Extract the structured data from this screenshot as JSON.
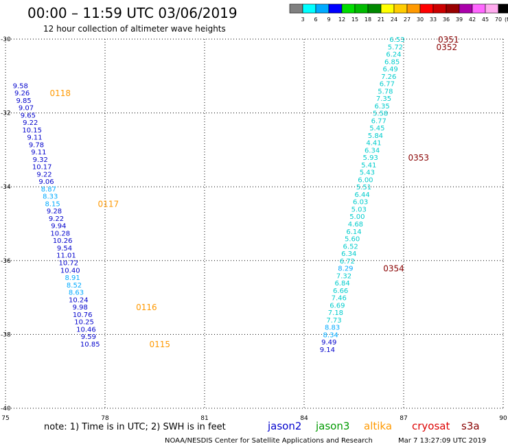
{
  "title": "00:00 – 11:59 UTC 03/06/2019",
  "subtitle": "12 hour collection of altimeter wave heights",
  "note": "note: 1) Time is in UTC; 2) SWH is in feet",
  "credit": "NOAA/NESDIS Center for Satellite Applications and Research",
  "timestamp": "Mar  7 13:27:09 UTC 2019",
  "satellites": [
    {
      "name": "jason2",
      "color": "#0000cc"
    },
    {
      "name": "jason3",
      "color": "#009900"
    },
    {
      "name": "altika",
      "color": "#ff9900"
    },
    {
      "name": "cryosat",
      "color": "#dd0000"
    },
    {
      "name": "s3a",
      "color": "#880000"
    }
  ],
  "colorbar": {
    "labels": [
      "3",
      "6",
      "9",
      "12",
      "15",
      "18",
      "21",
      "24",
      "27",
      "30",
      "33",
      "36",
      "39",
      "42",
      "45",
      "70"
    ],
    "unit": "(ft)",
    "colors": [
      "#808080",
      "#00ffff",
      "#00aaff",
      "#0000ff",
      "#00dd00",
      "#00bb00",
      "#008800",
      "#ffff00",
      "#ffcc00",
      "#ff9900",
      "#ff0000",
      "#cc0000",
      "#990000",
      "#aa00aa",
      "#ff66ff",
      "#ffaaee",
      "#000000"
    ]
  },
  "chart_data": {
    "type": "scatter",
    "x_ticks": [
      "75",
      "78",
      "81",
      "84",
      "87",
      "90"
    ],
    "y_ticks": [
      "-30",
      "-32",
      "-34",
      "-36",
      "-38",
      "-40"
    ],
    "xlim": [
      75,
      90
    ],
    "ylim": [
      -40,
      -30
    ],
    "grid": true,
    "tracks": [
      {
        "points": [
          {
            "v": "9.58",
            "c": "#0000cc",
            "x": 75.45,
            "y": -31.25
          },
          {
            "v": "9.26",
            "c": "#0000cc",
            "x": 75.5,
            "y": -31.45
          },
          {
            "v": "9.85",
            "c": "#0000cc",
            "x": 75.55,
            "y": -31.65
          },
          {
            "v": "9.07",
            "c": "#0000cc",
            "x": 75.62,
            "y": -31.85
          },
          {
            "v": "9.65",
            "c": "#0000cc",
            "x": 75.68,
            "y": -32.05
          },
          {
            "v": "9.22",
            "c": "#0000cc",
            "x": 75.75,
            "y": -32.25
          },
          {
            "v": "10.15",
            "c": "#0000cc",
            "x": 75.8,
            "y": -32.45
          },
          {
            "v": "9.11",
            "c": "#0000cc",
            "x": 75.88,
            "y": -32.65
          },
          {
            "v": "9.78",
            "c": "#0000cc",
            "x": 75.93,
            "y": -32.85
          },
          {
            "v": "9.11",
            "c": "#0000cc",
            "x": 76.0,
            "y": -33.05
          },
          {
            "v": "9.32",
            "c": "#0000cc",
            "x": 76.05,
            "y": -33.25
          },
          {
            "v": "10.17",
            "c": "#0000cc",
            "x": 76.1,
            "y": -33.45
          },
          {
            "v": "9.22",
            "c": "#0000cc",
            "x": 76.17,
            "y": -33.65
          },
          {
            "v": "9.06",
            "c": "#0000cc",
            "x": 76.23,
            "y": -33.85
          },
          {
            "v": "8.87",
            "c": "#00aaff",
            "x": 76.3,
            "y": -34.05
          },
          {
            "v": "8.33",
            "c": "#00aaff",
            "x": 76.35,
            "y": -34.25
          },
          {
            "v": "8.15",
            "c": "#00aaff",
            "x": 76.42,
            "y": -34.45
          },
          {
            "v": "9.28",
            "c": "#0000cc",
            "x": 76.47,
            "y": -34.65
          },
          {
            "v": "9.22",
            "c": "#0000cc",
            "x": 76.53,
            "y": -34.85
          },
          {
            "v": "9.94",
            "c": "#0000cc",
            "x": 76.6,
            "y": -35.05
          },
          {
            "v": "10.28",
            "c": "#0000cc",
            "x": 76.65,
            "y": -35.25
          },
          {
            "v": "10.26",
            "c": "#0000cc",
            "x": 76.72,
            "y": -35.45
          },
          {
            "v": "9.54",
            "c": "#0000cc",
            "x": 76.78,
            "y": -35.65
          },
          {
            "v": "11.01",
            "c": "#0000cc",
            "x": 76.83,
            "y": -35.85
          },
          {
            "v": "10.72",
            "c": "#0000cc",
            "x": 76.9,
            "y": -36.05
          },
          {
            "v": "10.40",
            "c": "#0000cc",
            "x": 76.95,
            "y": -36.25
          },
          {
            "v": "8.91",
            "c": "#00aaff",
            "x": 77.02,
            "y": -36.45
          },
          {
            "v": "8.52",
            "c": "#00aaff",
            "x": 77.07,
            "y": -36.65
          },
          {
            "v": "8.63",
            "c": "#00aaff",
            "x": 77.13,
            "y": -36.85
          },
          {
            "v": "10.24",
            "c": "#0000cc",
            "x": 77.2,
            "y": -37.05
          },
          {
            "v": "9.98",
            "c": "#0000cc",
            "x": 77.25,
            "y": -37.25
          },
          {
            "v": "10.76",
            "c": "#0000cc",
            "x": 77.32,
            "y": -37.45
          },
          {
            "v": "10.25",
            "c": "#0000cc",
            "x": 77.37,
            "y": -37.65
          },
          {
            "v": "10.46",
            "c": "#0000cc",
            "x": 77.43,
            "y": -37.85
          },
          {
            "v": "9.59",
            "c": "#0000cc",
            "x": 77.5,
            "y": -38.05
          },
          {
            "v": "10.85",
            "c": "#0000cc",
            "x": 77.55,
            "y": -38.25
          }
        ],
        "times": [
          {
            "v": "0118",
            "c": "#ff9900",
            "x": 76.65,
            "y": -31.45
          },
          {
            "v": "0117",
            "c": "#ff9900",
            "x": 78.1,
            "y": -34.45
          },
          {
            "v": "0116",
            "c": "#ff9900",
            "x": 79.25,
            "y": -37.25
          },
          {
            "v": "0115",
            "c": "#ff9900",
            "x": 79.65,
            "y": -38.25
          }
        ]
      },
      {
        "points": [
          {
            "v": "6.53",
            "c": "#00cccc",
            "x": 86.8,
            "y": -30.0
          },
          {
            "v": "5.72",
            "c": "#00cccc",
            "x": 86.75,
            "y": -30.2
          },
          {
            "v": "6.24",
            "c": "#00cccc",
            "x": 86.7,
            "y": -30.4
          },
          {
            "v": "6.85",
            "c": "#00cccc",
            "x": 86.65,
            "y": -30.6
          },
          {
            "v": "6.49",
            "c": "#00cccc",
            "x": 86.6,
            "y": -30.8
          },
          {
            "v": "7.26",
            "c": "#00cccc",
            "x": 86.55,
            "y": -31.0
          },
          {
            "v": "6.77",
            "c": "#00cccc",
            "x": 86.5,
            "y": -31.2
          },
          {
            "v": "5.78",
            "c": "#00cccc",
            "x": 86.45,
            "y": -31.4
          },
          {
            "v": "7.35",
            "c": "#00cccc",
            "x": 86.4,
            "y": -31.6
          },
          {
            "v": "6.35",
            "c": "#00cccc",
            "x": 86.35,
            "y": -31.8
          },
          {
            "v": "5.58",
            "c": "#00cccc",
            "x": 86.3,
            "y": -32.0
          },
          {
            "v": "6.77",
            "c": "#00cccc",
            "x": 86.25,
            "y": -32.2
          },
          {
            "v": "5.45",
            "c": "#00cccc",
            "x": 86.2,
            "y": -32.4
          },
          {
            "v": "5.84",
            "c": "#00cccc",
            "x": 86.15,
            "y": -32.6
          },
          {
            "v": "4.41",
            "c": "#00cccc",
            "x": 86.1,
            "y": -32.8
          },
          {
            "v": "6.34",
            "c": "#00cccc",
            "x": 86.05,
            "y": -33.0
          },
          {
            "v": "5.93",
            "c": "#00cccc",
            "x": 86.0,
            "y": -33.2
          },
          {
            "v": "5.41",
            "c": "#00cccc",
            "x": 85.95,
            "y": -33.4
          },
          {
            "v": "5.43",
            "c": "#00cccc",
            "x": 85.9,
            "y": -33.6
          },
          {
            "v": "6.00",
            "c": "#00cccc",
            "x": 85.85,
            "y": -33.8
          },
          {
            "v": "5.51",
            "c": "#00cccc",
            "x": 85.8,
            "y": -34.0
          },
          {
            "v": "6.44",
            "c": "#00cccc",
            "x": 85.75,
            "y": -34.2
          },
          {
            "v": "6.03",
            "c": "#00cccc",
            "x": 85.7,
            "y": -34.4
          },
          {
            "v": "5.03",
            "c": "#00cccc",
            "x": 85.65,
            "y": -34.6
          },
          {
            "v": "5.00",
            "c": "#00cccc",
            "x": 85.6,
            "y": -34.8
          },
          {
            "v": "4.68",
            "c": "#00cccc",
            "x": 85.55,
            "y": -35.0
          },
          {
            "v": "6.14",
            "c": "#00cccc",
            "x": 85.5,
            "y": -35.2
          },
          {
            "v": "5.60",
            "c": "#00cccc",
            "x": 85.45,
            "y": -35.4
          },
          {
            "v": "6.52",
            "c": "#00cccc",
            "x": 85.4,
            "y": -35.6
          },
          {
            "v": "6.34",
            "c": "#00cccc",
            "x": 85.35,
            "y": -35.8
          },
          {
            "v": "6.72",
            "c": "#00cccc",
            "x": 85.3,
            "y": -36.0
          },
          {
            "v": "8.29",
            "c": "#00aaff",
            "x": 85.25,
            "y": -36.2
          },
          {
            "v": "7.32",
            "c": "#00cccc",
            "x": 85.2,
            "y": -36.4
          },
          {
            "v": "6.84",
            "c": "#00cccc",
            "x": 85.15,
            "y": -36.6
          },
          {
            "v": "6.66",
            "c": "#00cccc",
            "x": 85.1,
            "y": -36.8
          },
          {
            "v": "7.46",
            "c": "#00cccc",
            "x": 85.05,
            "y": -37.0
          },
          {
            "v": "6.69",
            "c": "#00cccc",
            "x": 85.0,
            "y": -37.2
          },
          {
            "v": "7.18",
            "c": "#00cccc",
            "x": 84.95,
            "y": -37.4
          },
          {
            "v": "7.73",
            "c": "#00cccc",
            "x": 84.9,
            "y": -37.6
          },
          {
            "v": "8.83",
            "c": "#00aaff",
            "x": 84.85,
            "y": -37.8
          },
          {
            "v": "8.34",
            "c": "#00aaff",
            "x": 84.8,
            "y": -38.0
          },
          {
            "v": "9.49",
            "c": "#0000cc",
            "x": 84.75,
            "y": -38.2
          },
          {
            "v": "9.14",
            "c": "#0000cc",
            "x": 84.7,
            "y": -38.4
          }
        ],
        "times": [
          {
            "v": "0351",
            "c": "#880000",
            "x": 88.35,
            "y": -30.0
          },
          {
            "v": "0352",
            "c": "#880000",
            "x": 88.3,
            "y": -30.2
          },
          {
            "v": "0353",
            "c": "#880000",
            "x": 87.45,
            "y": -33.2
          },
          {
            "v": "0354",
            "c": "#880000",
            "x": 86.7,
            "y": -36.2
          }
        ]
      }
    ]
  }
}
